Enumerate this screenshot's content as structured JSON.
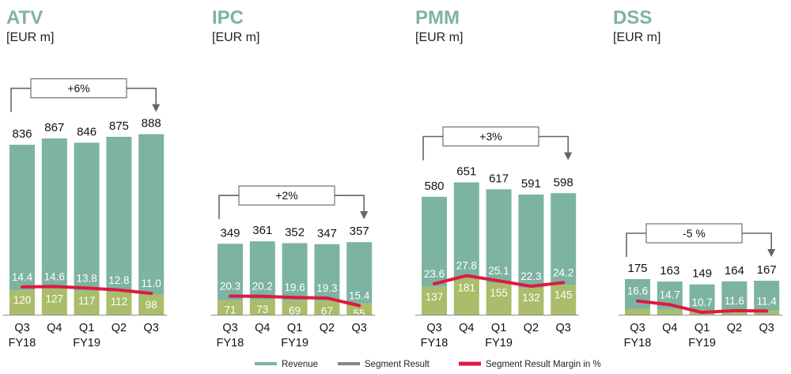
{
  "colors": {
    "revenue": "#7db3a1",
    "segment_result": "#a9bd6a",
    "margin_line": "#e0193f",
    "title": "#7db3a1",
    "arrow": "#6e6264",
    "axis": "#8f8f8f"
  },
  "legend": [
    {
      "key": "revenue",
      "label": "Revenue",
      "color": "#7db3a1"
    },
    {
      "key": "segment_result",
      "label": "Segment Result",
      "color": "#8e8486"
    },
    {
      "key": "margin",
      "label": "Segment Result Margin in %",
      "color": "#e0193f"
    }
  ],
  "chart_data": [
    {
      "type": "bar",
      "title": "ATV",
      "unit": "[EUR m]",
      "categories": [
        "Q3\nFY18",
        "Q4",
        "Q1\nFY19",
        "Q2",
        "Q3"
      ],
      "series": [
        {
          "name": "Revenue",
          "values": [
            836,
            867,
            846,
            875,
            888
          ]
        },
        {
          "name": "Segment Result",
          "values": [
            120,
            127,
            117,
            112,
            98
          ]
        },
        {
          "name": "Segment Result Margin in %",
          "type": "line",
          "values": [
            14.4,
            14.6,
            13.8,
            12.8,
            11.0
          ]
        }
      ],
      "growth": "+6%"
    },
    {
      "type": "bar",
      "title": "IPC",
      "unit": "[EUR m]",
      "categories": [
        "Q3\nFY18",
        "Q4",
        "Q1\nFY19",
        "Q2",
        "Q3"
      ],
      "series": [
        {
          "name": "Revenue",
          "values": [
            349,
            361,
            352,
            347,
            357
          ]
        },
        {
          "name": "Segment Result",
          "values": [
            71,
            73,
            69,
            67,
            55
          ]
        },
        {
          "name": "Segment Result Margin in %",
          "type": "line",
          "values": [
            20.3,
            20.2,
            19.6,
            19.3,
            15.4
          ]
        }
      ],
      "growth": "+2%"
    },
    {
      "type": "bar",
      "title": "PMM",
      "unit": "[EUR m]",
      "categories": [
        "Q3\nFY18",
        "Q4",
        "Q1\nFY19",
        "Q2",
        "Q3"
      ],
      "series": [
        {
          "name": "Revenue",
          "values": [
            580,
            651,
            617,
            591,
            598
          ]
        },
        {
          "name": "Segment Result",
          "values": [
            137,
            181,
            155,
            132,
            145
          ]
        },
        {
          "name": "Segment Result Margin in %",
          "type": "line",
          "values": [
            23.6,
            27.8,
            25.1,
            22.3,
            24.2
          ]
        }
      ],
      "growth": "+3%"
    },
    {
      "type": "bar",
      "title": "DSS",
      "unit": "[EUR m]",
      "categories": [
        "Q3\nFY18",
        "Q4",
        "Q1\nFY19",
        "Q2",
        "Q3"
      ],
      "series": [
        {
          "name": "Revenue",
          "values": [
            175,
            163,
            149,
            164,
            167
          ]
        },
        {
          "name": "Segment Result",
          "values": [
            29,
            24,
            16,
            19,
            19
          ]
        },
        {
          "name": "Segment Result Margin in %",
          "type": "line",
          "values": [
            16.6,
            14.7,
            10.7,
            11.6,
            11.4
          ]
        }
      ],
      "growth": "-5 %"
    }
  ]
}
